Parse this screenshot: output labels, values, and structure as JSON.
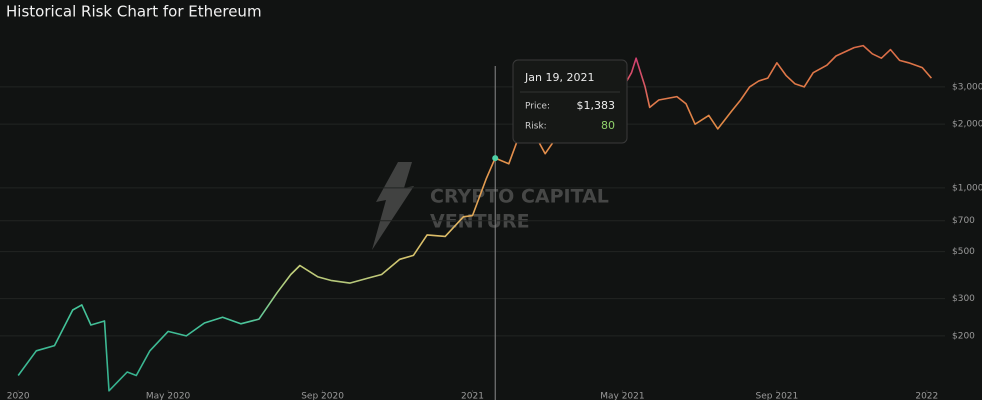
{
  "chart_data": {
    "type": "line",
    "title": "Historical Risk Chart for Ethereum",
    "log_scale": true,
    "grid": true,
    "x": [
      2020.0,
      2020.04,
      2020.08,
      2020.12,
      2020.14,
      2020.16,
      2020.19,
      2020.2,
      2020.24,
      2020.26,
      2020.29,
      2020.33,
      2020.37,
      2020.41,
      2020.45,
      2020.49,
      2020.53,
      2020.57,
      2020.6,
      2020.62,
      2020.66,
      2020.69,
      2020.73,
      2020.77,
      2020.8,
      2020.84,
      2020.87,
      2020.9,
      2020.94,
      2020.98,
      2021.0,
      2021.03,
      2021.05,
      2021.08,
      2021.1,
      2021.13,
      2021.16,
      2021.19,
      2021.22,
      2021.25,
      2021.29,
      2021.32,
      2021.35,
      2021.36,
      2021.38,
      2021.39,
      2021.41,
      2021.45,
      2021.47,
      2021.49,
      2021.52,
      2021.54,
      2021.57,
      2021.59,
      2021.61,
      2021.63,
      2021.65,
      2021.67,
      2021.69,
      2021.71,
      2021.73,
      2021.75,
      2021.78,
      2021.8,
      2021.84,
      2021.86,
      2021.88,
      2021.9,
      2021.92,
      2021.94,
      2021.96,
      2021.99,
      2022.01
    ],
    "values": [
      130,
      170,
      180,
      265,
      280,
      225,
      235,
      110,
      135,
      130,
      170,
      210,
      200,
      230,
      245,
      228,
      240,
      320,
      390,
      430,
      380,
      365,
      355,
      375,
      390,
      460,
      480,
      600,
      590,
      730,
      740,
      1100,
      1383,
      1300,
      1700,
      1900,
      1450,
      1800,
      1750,
      2100,
      2400,
      2700,
      3500,
      4100,
      3000,
      2400,
      2600,
      2700,
      2500,
      2000,
      2200,
      1900,
      2300,
      2600,
      3000,
      3200,
      3300,
      3900,
      3400,
      3100,
      3000,
      3500,
      3800,
      4200,
      4600,
      4700,
      4300,
      4100,
      4500,
      4000,
      3900,
      3700,
      3300
    ],
    "colors": [
      "#3dba95",
      "#3dba95",
      "#40bd96",
      "#45c59a",
      "#45c59a",
      "#42bf97",
      "#42bf97",
      "#35b08e",
      "#38b490",
      "#38b490",
      "#3cb993",
      "#40bd96",
      "#40bd96",
      "#45c29a",
      "#48c49a",
      "#48c49a",
      "#5cc79a",
      "#a6cf82",
      "#bccf7c",
      "#c8cf78",
      "#bcc97a",
      "#b6c87a",
      "#b6c87a",
      "#bcc97a",
      "#c4c878",
      "#d2c570",
      "#d6c36c",
      "#dcbd68",
      "#dcbd68",
      "#e0b060",
      "#e0a858",
      "#e39a50",
      "#e5924c",
      "#e4944d",
      "#e6884a",
      "#e6804a",
      "#e4904c",
      "#e68848",
      "#e68848",
      "#e47e4a",
      "#e27852",
      "#de6a5a",
      "#d84c6a",
      "#d03f70",
      "#d85a62",
      "#e07a4c",
      "#e07a4c",
      "#e07a4c",
      "#e07e48",
      "#e08646",
      "#e08646",
      "#e08a46",
      "#e08646",
      "#e07e48",
      "#e07a48",
      "#e07a48",
      "#e07848",
      "#de7448",
      "#e07848",
      "#e07a48",
      "#e07a48",
      "#e07848",
      "#de7448",
      "#dc7048",
      "#da6c48",
      "#da6c48",
      "#dc7048",
      "#dc7048",
      "#da6c48",
      "#dc7248",
      "#de7448",
      "#de7648",
      "#e07a48"
    ],
    "xlim": [
      2019.96,
      2022.04
    ],
    "xticks": [
      2020,
      {
        "value": 2020.33,
        "label": "May 2020"
      },
      {
        "value": 2020.67,
        "label": "Sep 2020"
      },
      2021,
      {
        "value": 2021.33,
        "label": "May 2021"
      },
      {
        "value": 2021.67,
        "label": "Sep 2021"
      },
      2022
    ],
    "ylim": [
      111,
      5570
    ],
    "yticks": [
      {
        "value": 200,
        "label": "$200"
      },
      {
        "value": 300,
        "label": "$300"
      },
      {
        "value": 500,
        "label": "$500"
      },
      {
        "value": 700,
        "label": "$700"
      },
      {
        "value": 1000,
        "label": "$1,000"
      },
      {
        "value": 2000,
        "label": "$2,000"
      },
      {
        "value": 3000,
        "label": "$3,000"
      }
    ],
    "watermark": [
      "CRYPTO CAPITAL",
      "VENTURE"
    ],
    "tooltip": {
      "date": "Jan 19, 2021",
      "price_label": "Price:",
      "price": {
        "value": 1383,
        "label": "$1,383"
      },
      "risk_label": "Risk:",
      "risk": 80
    }
  }
}
